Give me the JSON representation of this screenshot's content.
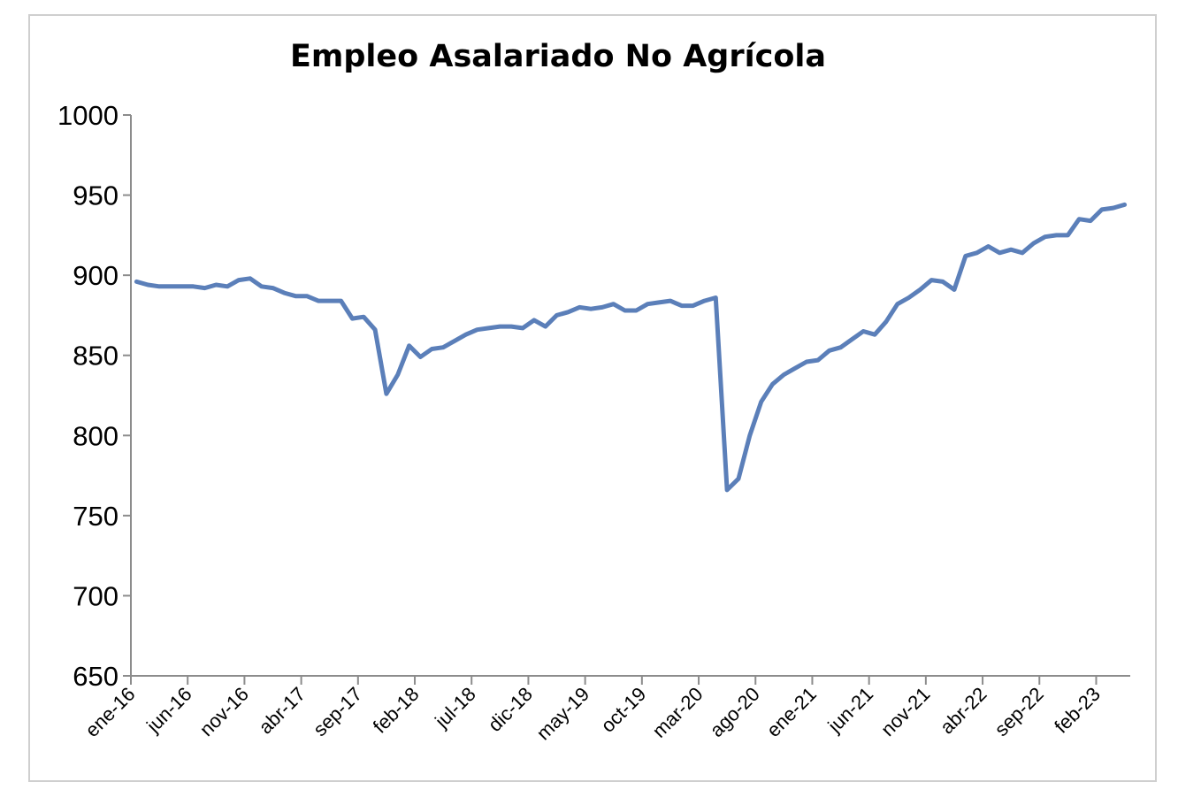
{
  "chart_data": {
    "type": "line",
    "title": "Empleo Asalariado No Agrícola",
    "xlabel": "",
    "ylabel": "",
    "ylim": [
      650,
      1000
    ],
    "yticks": [
      650,
      700,
      750,
      800,
      850,
      900,
      950,
      1000
    ],
    "x_tick_labels": [
      "ene-16",
      "jun-16",
      "nov-16",
      "abr-17",
      "sep-17",
      "feb-18",
      "jul-18",
      "dic-18",
      "may-19",
      "oct-19",
      "mar-20",
      "ago-20",
      "ene-21",
      "jun-21",
      "nov-21",
      "abr-22",
      "sep-22",
      "feb-23"
    ],
    "grid": false,
    "legend": "none",
    "series": [
      {
        "color": "#5b7fb9",
        "x": [
          "ene-16",
          "feb-16",
          "mar-16",
          "abr-16",
          "may-16",
          "jun-16",
          "jul-16",
          "ago-16",
          "sep-16",
          "oct-16",
          "nov-16",
          "dic-16",
          "ene-17",
          "feb-17",
          "mar-17",
          "abr-17",
          "may-17",
          "jun-17",
          "jul-17",
          "ago-17",
          "sep-17",
          "oct-17",
          "nov-17",
          "dic-17",
          "ene-18",
          "feb-18",
          "mar-18",
          "abr-18",
          "may-18",
          "jun-18",
          "jul-18",
          "ago-18",
          "sep-18",
          "oct-18",
          "nov-18",
          "dic-18",
          "ene-19",
          "feb-19",
          "mar-19",
          "abr-19",
          "may-19",
          "jun-19",
          "jul-19",
          "ago-19",
          "sep-19",
          "oct-19",
          "nov-19",
          "dic-19",
          "ene-20",
          "feb-20",
          "mar-20",
          "abr-20",
          "may-20",
          "jun-20",
          "jul-20",
          "ago-20",
          "sep-20",
          "oct-20",
          "nov-20",
          "dic-20",
          "ene-21",
          "feb-21",
          "mar-21",
          "abr-21",
          "may-21",
          "jun-21",
          "jul-21",
          "ago-21",
          "sep-21",
          "oct-21",
          "nov-21",
          "dic-21",
          "ene-22",
          "feb-22",
          "mar-22",
          "abr-22",
          "may-22",
          "jun-22",
          "jul-22",
          "ago-22",
          "sep-22",
          "oct-22",
          "nov-22",
          "dic-22",
          "ene-23",
          "feb-23",
          "mar-23",
          "abr-23"
        ],
        "values": [
          896,
          894,
          893,
          893,
          893,
          893,
          892,
          894,
          893,
          897,
          898,
          893,
          892,
          889,
          887,
          887,
          884,
          884,
          884,
          873,
          874,
          866,
          826,
          838,
          856,
          849,
          854,
          855,
          859,
          863,
          866,
          867,
          868,
          868,
          867,
          872,
          868,
          875,
          877,
          880,
          879,
          880,
          882,
          878,
          878,
          882,
          883,
          884,
          881,
          881,
          884,
          886,
          766,
          773,
          800,
          821,
          832,
          838,
          842,
          846,
          847,
          853,
          855,
          860,
          865,
          863,
          871,
          882,
          886,
          891,
          897,
          896,
          891,
          912,
          914,
          918,
          914,
          916,
          914,
          920,
          924,
          925,
          925,
          935,
          934,
          941,
          942,
          944
        ]
      }
    ]
  }
}
